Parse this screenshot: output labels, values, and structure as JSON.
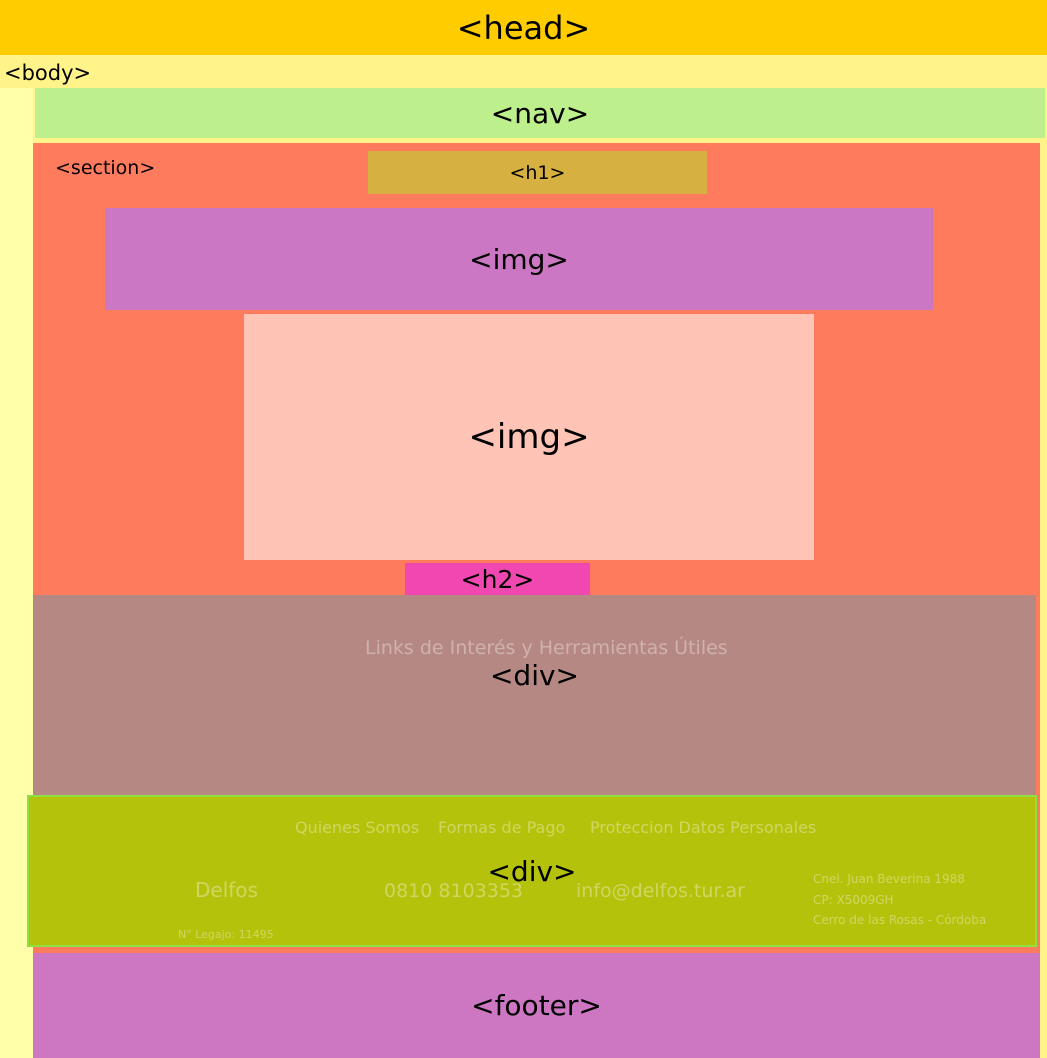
{
  "head": "<head>",
  "body": "<body>",
  "nav": "<nav>",
  "section": "<section>",
  "h1": "<h1>",
  "img1": "<img>",
  "img2": "<img>",
  "h2": "<h2>",
  "div1": "<div>",
  "div2": "<div>",
  "footer": "<footer>",
  "background": {
    "links_title": "Links de Interés y Herramientas Útiles",
    "menu": [
      "Quienes Somos",
      "Formas de Pago",
      "Proteccion Datos Personales"
    ],
    "phone": "0810 8103353",
    "email": "info@delfos.tur.ar",
    "address": [
      "Cnel. Juan Beverina 1988",
      "CP: X5009GH",
      "Cerro de las Rosas - Córdoba"
    ],
    "brand": "Delfos",
    "legajo": "N° Legajo: 11495"
  }
}
